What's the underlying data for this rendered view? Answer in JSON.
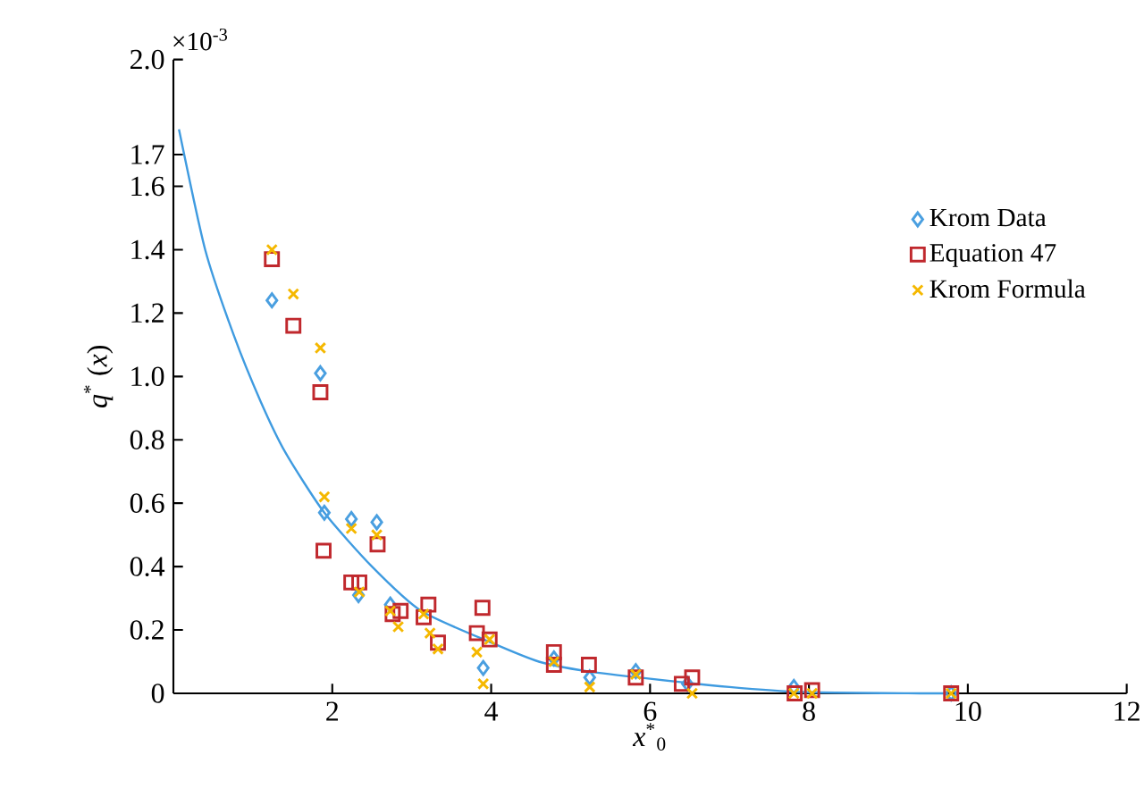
{
  "chart_data": {
    "type": "scatter",
    "xlabel": "*x*$^{*}$$_{0}$",
    "ylabel": "*q*$^{*}$ (*x*)",
    "annotations": [
      "×10$^{-3}$"
    ],
    "xlim": [
      0,
      12
    ],
    "xticks": [
      2,
      4,
      6,
      8,
      10,
      12
    ],
    "ylim": [
      0,
      2.0
    ],
    "yticks": [
      0,
      0.2,
      0.4,
      0.6,
      0.8,
      {
        "value": 1.0,
        "label": "1.0"
      },
      1.2,
      1.4,
      1.6,
      1.7,
      {
        "value": 2.0,
        "label": "2.0"
      }
    ],
    "legend": "right",
    "grid": false,
    "series": [
      {
        "name": "Krom Data",
        "color": "#4a9fe0",
        "marker": "diamond",
        "x": [
          1.24,
          1.85,
          1.9,
          2.24,
          2.56,
          2.33,
          2.73,
          3.9,
          4.79,
          5.24,
          5.82,
          6.47,
          7.81,
          9.79
        ],
        "values": [
          1.24,
          1.01,
          0.57,
          0.55,
          0.54,
          0.31,
          0.28,
          0.08,
          0.11,
          0.05,
          0.07,
          0.03,
          0.02,
          0
        ]
      },
      {
        "name": "Equation 47",
        "color": "#c0282d",
        "marker": "square",
        "x": [
          1.24,
          1.51,
          1.85,
          1.89,
          2.24,
          2.34,
          2.57,
          2.76,
          2.86,
          3.21,
          3.15,
          3.33,
          3.82,
          3.89,
          3.98,
          4.79,
          4.79,
          5.23,
          5.82,
          6.4,
          6.53,
          7.82,
          8.04,
          9.79
        ],
        "values": [
          1.37,
          1.16,
          0.95,
          0.45,
          0.35,
          0.35,
          0.47,
          0.25,
          0.26,
          0.28,
          0.24,
          0.16,
          0.19,
          0.27,
          0.17,
          0.13,
          0.09,
          0.09,
          0.05,
          0.03,
          0.05,
          0.0,
          0.01,
          0
        ]
      },
      {
        "name": "Krom Formula",
        "color": "#f5b800",
        "marker": "cross",
        "x": [
          1.24,
          1.51,
          1.85,
          1.9,
          2.24,
          2.34,
          2.56,
          2.73,
          2.83,
          3.15,
          3.23,
          3.33,
          3.82,
          3.9,
          3.98,
          4.79,
          5.24,
          5.82,
          6.53,
          7.81,
          8.04,
          9.79
        ],
        "values": [
          1.4,
          1.26,
          1.09,
          0.62,
          0.52,
          0.32,
          0.5,
          0.26,
          0.21,
          0.25,
          0.19,
          0.14,
          0.13,
          0.03,
          0.17,
          0.1,
          0.02,
          0.06,
          0,
          0,
          0,
          0
        ]
      },
      {
        "type": "line",
        "color": "#3f9be0",
        "marker": "none",
        "line_style": "solid",
        "x": [
          0.07,
          0.4,
          0.76,
          1.1,
          1.41,
          1.9,
          2.5,
          3.12,
          4.0,
          4.6,
          5.2,
          6.0,
          7.0,
          7.9,
          9.4,
          9.7
        ],
        "values": [
          1.78,
          1.4,
          1.13,
          0.92,
          0.76,
          0.57,
          0.4,
          0.26,
          0.16,
          0.1,
          0.07,
          0.046,
          0.02,
          0.004,
          0,
          0
        ]
      }
    ]
  }
}
